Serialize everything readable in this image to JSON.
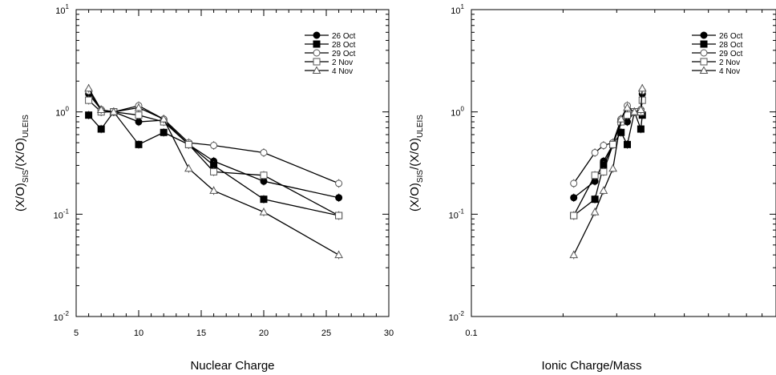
{
  "chart_data": [
    {
      "type": "line",
      "title": "",
      "xlabel": "Nuclear Charge",
      "ylabel": {
        "main": "(X/O)",
        "sub1": "SIS",
        "mid": "/(X/O)",
        "sub2": "ULEIS"
      },
      "xscale": "linear",
      "yscale": "log",
      "xlim": [
        5,
        30
      ],
      "ylim": [
        0.01,
        10
      ],
      "xticks": [
        "5",
        "10",
        "15",
        "20",
        "25",
        "30"
      ],
      "yticks": [
        {
          "base": "10",
          "exp": "-2",
          "value": 0.01
        },
        {
          "base": "10",
          "exp": "-1",
          "value": 0.1
        },
        {
          "base": "10",
          "exp": "0",
          "value": 1
        },
        {
          "base": "10",
          "exp": "1",
          "value": 10
        }
      ],
      "legend_position": "top-right",
      "series": [
        {
          "name": "26 Oct",
          "marker": "circle-filled",
          "points": [
            [
              6,
              1.5
            ],
            [
              7,
              1.05
            ],
            [
              8,
              1.0
            ],
            [
              10,
              0.8
            ],
            [
              12,
              0.83
            ],
            [
              14,
              0.48
            ],
            [
              16,
              0.33
            ],
            [
              20,
              0.21
            ],
            [
              26,
              0.145
            ]
          ]
        },
        {
          "name": "28 Oct",
          "marker": "square-filled",
          "points": [
            [
              6,
              0.93
            ],
            [
              7,
              0.68
            ],
            [
              8,
              1.0
            ],
            [
              10,
              0.48
            ],
            [
              12,
              0.63
            ],
            [
              14,
              0.48
            ],
            [
              16,
              0.3
            ],
            [
              20,
              0.14
            ],
            [
              26,
              0.097
            ]
          ]
        },
        {
          "name": "29 Oct",
          "marker": "circle-open",
          "points": [
            [
              6,
              1.6
            ],
            [
              7,
              1.05
            ],
            [
              8,
              1.0
            ],
            [
              10,
              1.15
            ],
            [
              12,
              0.85
            ],
            [
              14,
              0.5
            ],
            [
              16,
              0.47
            ],
            [
              20,
              0.4
            ],
            [
              26,
              0.2
            ]
          ]
        },
        {
          "name": "2 Nov",
          "marker": "square-open",
          "points": [
            [
              6,
              1.3
            ],
            [
              7,
              1.0
            ],
            [
              8,
              1.0
            ],
            [
              10,
              0.93
            ],
            [
              12,
              0.8
            ],
            [
              14,
              0.48
            ],
            [
              16,
              0.26
            ],
            [
              20,
              0.24
            ],
            [
              26,
              0.097
            ]
          ]
        },
        {
          "name": "4 Nov",
          "marker": "triangle-open",
          "points": [
            [
              6,
              1.7
            ],
            [
              7,
              1.05
            ],
            [
              8,
              1.0
            ],
            [
              10,
              1.1
            ],
            [
              12,
              0.85
            ],
            [
              14,
              0.28
            ],
            [
              16,
              0.17
            ],
            [
              20,
              0.105
            ],
            [
              26,
              0.04
            ]
          ]
        }
      ]
    },
    {
      "type": "line",
      "title": "",
      "xlabel": "Ionic Charge/Mass",
      "ylabel": {
        "main": "(X/O)",
        "sub1": "SIS",
        "mid": "/(X/O)",
        "sub2": "ULEIS"
      },
      "xscale": "log",
      "yscale": "log",
      "xlim": [
        0.1,
        1
      ],
      "ylim": [
        0.01,
        10
      ],
      "xticks": [
        "0.1"
      ],
      "yticks": [
        {
          "base": "10",
          "exp": "-2",
          "value": 0.01
        },
        {
          "base": "10",
          "exp": "-1",
          "value": 0.1
        },
        {
          "base": "10",
          "exp": "0",
          "value": 1
        },
        {
          "base": "10",
          "exp": "1",
          "value": 10
        }
      ],
      "legend_position": "top-right",
      "series": [
        {
          "name": "26 Oct",
          "marker": "circle-filled",
          "points": [
            [
              0.2168,
              0.145
            ],
            [
              0.2544,
              0.21
            ],
            [
              0.2716,
              0.33
            ],
            [
              0.2916,
              0.48
            ],
            [
              0.31,
              0.83
            ],
            [
              0.325,
              0.8
            ],
            [
              0.343,
              1.0
            ],
            [
              0.36,
              1.05
            ],
            [
              0.364,
              1.5
            ]
          ]
        },
        {
          "name": "28 Oct",
          "marker": "square-filled",
          "points": [
            [
              0.2168,
              0.097
            ],
            [
              0.2544,
              0.14
            ],
            [
              0.2716,
              0.3
            ],
            [
              0.2916,
              0.48
            ],
            [
              0.31,
              0.63
            ],
            [
              0.325,
              0.48
            ],
            [
              0.343,
              1.0
            ],
            [
              0.36,
              0.68
            ],
            [
              0.364,
              0.93
            ]
          ]
        },
        {
          "name": "29 Oct",
          "marker": "circle-open",
          "points": [
            [
              0.2168,
              0.2
            ],
            [
              0.2544,
              0.4
            ],
            [
              0.2716,
              0.47
            ],
            [
              0.2916,
              0.5
            ],
            [
              0.31,
              0.85
            ],
            [
              0.325,
              1.15
            ],
            [
              0.343,
              1.0
            ],
            [
              0.36,
              1.05
            ],
            [
              0.364,
              1.6
            ]
          ]
        },
        {
          "name": "2 Nov",
          "marker": "square-open",
          "points": [
            [
              0.2168,
              0.097
            ],
            [
              0.2544,
              0.24
            ],
            [
              0.2716,
              0.26
            ],
            [
              0.2916,
              0.48
            ],
            [
              0.31,
              0.8
            ],
            [
              0.325,
              0.93
            ],
            [
              0.343,
              1.0
            ],
            [
              0.36,
              1.0
            ],
            [
              0.364,
              1.3
            ]
          ]
        },
        {
          "name": "4 Nov",
          "marker": "triangle-open",
          "points": [
            [
              0.2168,
              0.04
            ],
            [
              0.2544,
              0.105
            ],
            [
              0.2716,
              0.17
            ],
            [
              0.2916,
              0.28
            ],
            [
              0.31,
              0.85
            ],
            [
              0.325,
              1.1
            ],
            [
              0.343,
              1.0
            ],
            [
              0.36,
              1.05
            ],
            [
              0.364,
              1.7
            ]
          ]
        }
      ]
    }
  ]
}
